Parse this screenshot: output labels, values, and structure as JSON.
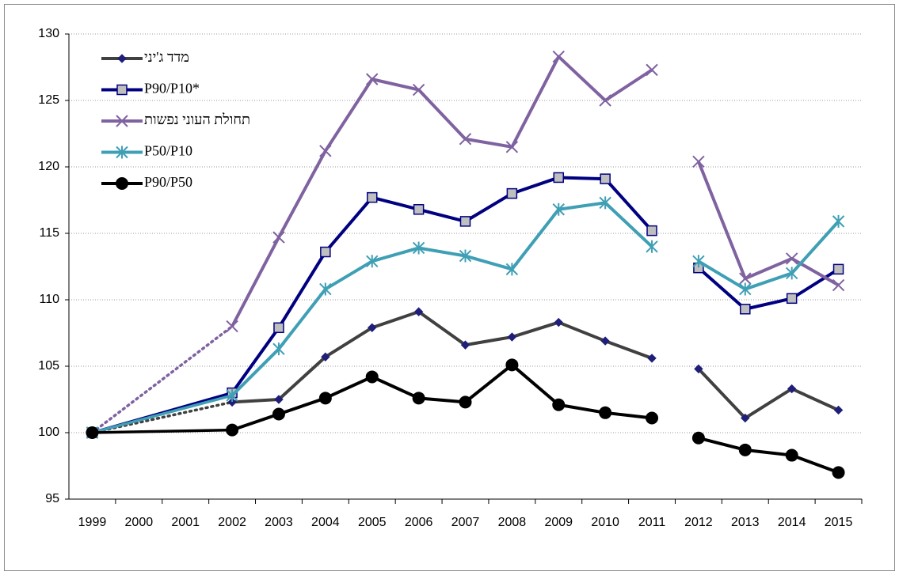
{
  "chart_data": {
    "type": "line",
    "categories": [
      "1999",
      "2000",
      "2001",
      "2002",
      "2003",
      "2004",
      "2005",
      "2006",
      "2007",
      "2008",
      "2009",
      "2010",
      "2011",
      "2012",
      "2013",
      "2014",
      "2015"
    ],
    "break_after": "2011",
    "series": [
      {
        "name": "מדד ג'יני",
        "color": "#404040",
        "marker": "diamond",
        "marker_color": "#1f1f7a",
        "bridge": "dotted",
        "values": [
          100,
          null,
          null,
          102.3,
          102.5,
          105.7,
          107.9,
          109.1,
          106.6,
          107.2,
          108.3,
          106.9,
          105.6,
          104.8,
          101.1,
          103.3,
          101.7
        ]
      },
      {
        "name": "P90/P10*",
        "color": "#000080",
        "marker": "square",
        "marker_color": "#bfbfbf",
        "bridge": "solid",
        "values": [
          100,
          null,
          null,
          103.0,
          107.9,
          113.6,
          117.7,
          116.8,
          115.9,
          118.0,
          119.2,
          119.1,
          115.2,
          112.4,
          109.3,
          110.1,
          112.3
        ]
      },
      {
        "name": "תחולת העוני נפשות",
        "color": "#7f62a0",
        "marker": "x",
        "marker_color": "#7f62a0",
        "bridge": "dotted",
        "values": [
          100,
          null,
          null,
          108.0,
          114.7,
          121.2,
          126.6,
          125.8,
          122.1,
          121.5,
          128.3,
          125.0,
          127.3,
          120.4,
          111.6,
          113.1,
          111.1
        ]
      },
      {
        "name": "P50/P10",
        "color": "#3f9fb5",
        "marker": "asterisk",
        "marker_color": "#3f9fb5",
        "bridge": "solid",
        "values": [
          100,
          null,
          null,
          102.8,
          106.3,
          110.8,
          112.9,
          113.9,
          113.3,
          112.3,
          116.8,
          117.3,
          114.0,
          112.9,
          110.8,
          112.0,
          115.9
        ]
      },
      {
        "name": "P90/P50",
        "color": "#000000",
        "marker": "circle",
        "marker_color": "#000000",
        "bridge": "solid",
        "values": [
          100,
          null,
          null,
          100.2,
          101.4,
          102.6,
          104.2,
          102.6,
          102.3,
          105.1,
          102.1,
          101.5,
          101.1,
          99.6,
          98.7,
          98.3,
          97.0
        ]
      }
    ],
    "ylim": [
      95,
      130
    ],
    "yticks": [
      95,
      100,
      105,
      110,
      115,
      120,
      125,
      130
    ],
    "grid": true,
    "legend": "top-left"
  }
}
